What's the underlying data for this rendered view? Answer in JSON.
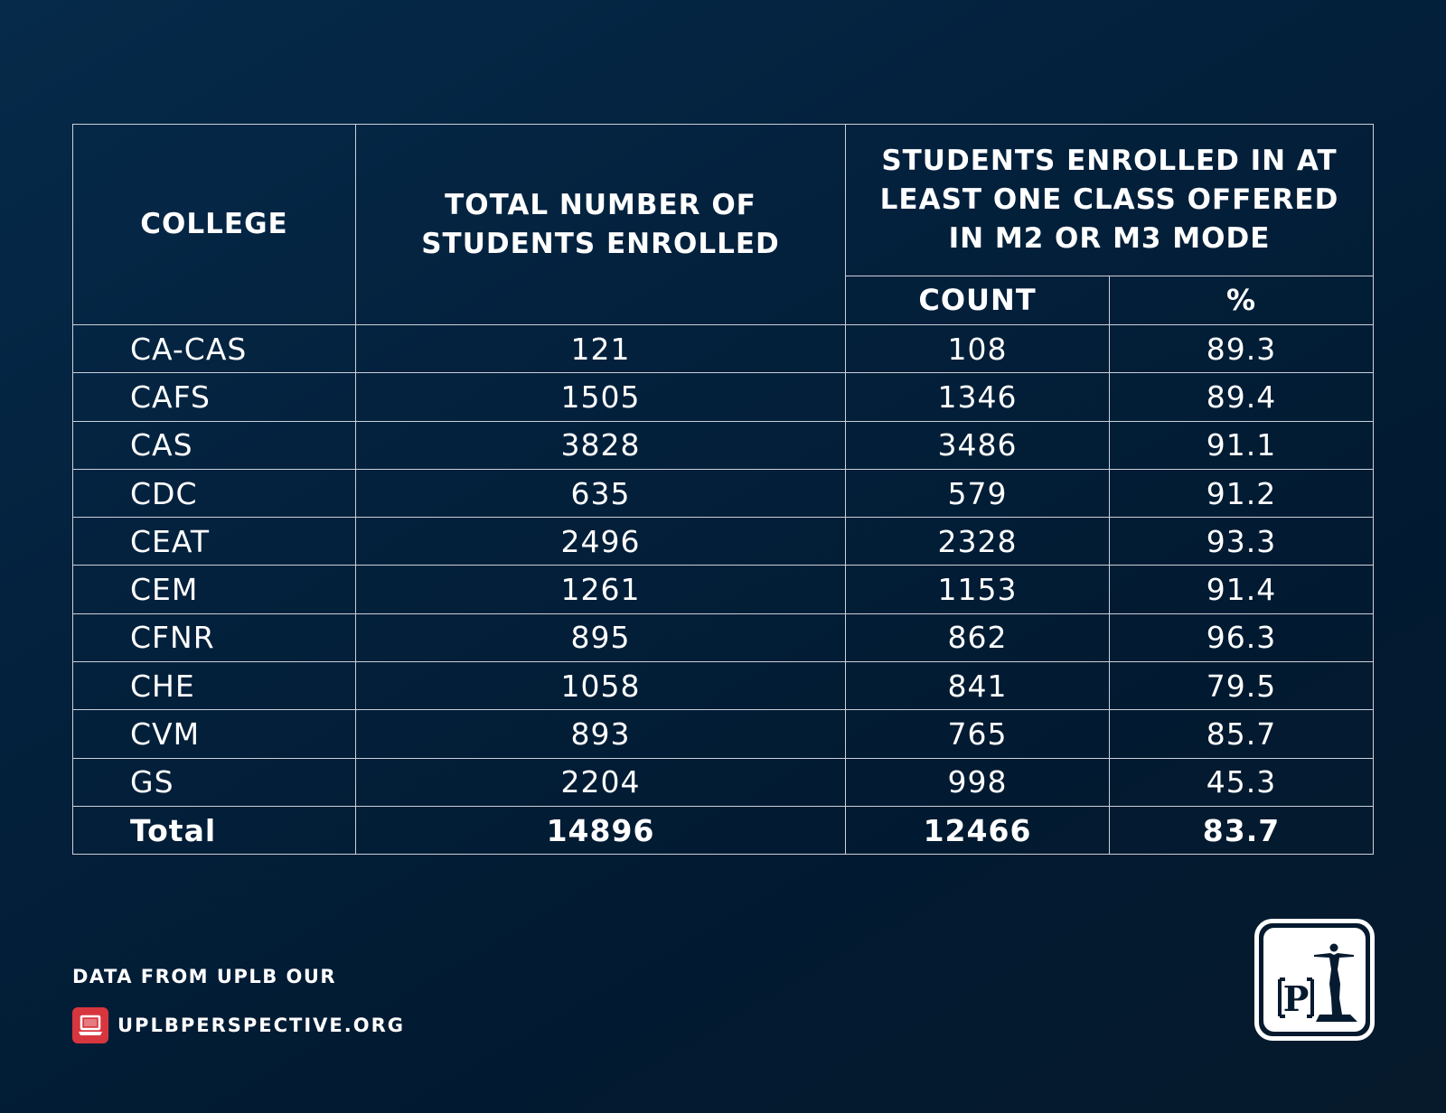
{
  "table": {
    "headers": {
      "college": "COLLEGE",
      "total": "TOTAL NUMBER OF STUDENTS ENROLLED",
      "enrolled_group": "STUDENTS ENROLLED IN AT LEAST ONE CLASS OFFERED IN M2 OR M3 MODE",
      "count": "COUNT",
      "percent": "%"
    },
    "rows": [
      {
        "college": "CA-CAS",
        "total": "121",
        "count": "108",
        "percent": "89.3"
      },
      {
        "college": "CAFS",
        "total": "1505",
        "count": "1346",
        "percent": "89.4"
      },
      {
        "college": "CAS",
        "total": "3828",
        "count": "3486",
        "percent": "91.1"
      },
      {
        "college": "CDC",
        "total": "635",
        "count": "579",
        "percent": "91.2"
      },
      {
        "college": "CEAT",
        "total": "2496",
        "count": "2328",
        "percent": "93.3"
      },
      {
        "college": "CEM",
        "total": "1261",
        "count": "1153",
        "percent": "91.4"
      },
      {
        "college": "CFNR",
        "total": "895",
        "count": "862",
        "percent": "96.3"
      },
      {
        "college": "CHE",
        "total": "1058",
        "count": "841",
        "percent": "79.5"
      },
      {
        "college": "CVM",
        "total": "893",
        "count": "765",
        "percent": "85.7"
      },
      {
        "college": "GS",
        "total": "2204",
        "count": "998",
        "percent": "45.3"
      }
    ],
    "total_row": {
      "college": "Total",
      "total": "14896",
      "count": "12466",
      "percent": "83.7"
    }
  },
  "footer": {
    "source": "DATA FROM UPLB OUR",
    "site": "UPLBPERSPECTIVE.ORG",
    "site_icon": "laptop-icon"
  },
  "logo": {
    "name": "perspective-logo",
    "letter": "P"
  },
  "colors": {
    "background": "#03203b",
    "grid": "#c9d1da",
    "accent": "#d8363e"
  }
}
